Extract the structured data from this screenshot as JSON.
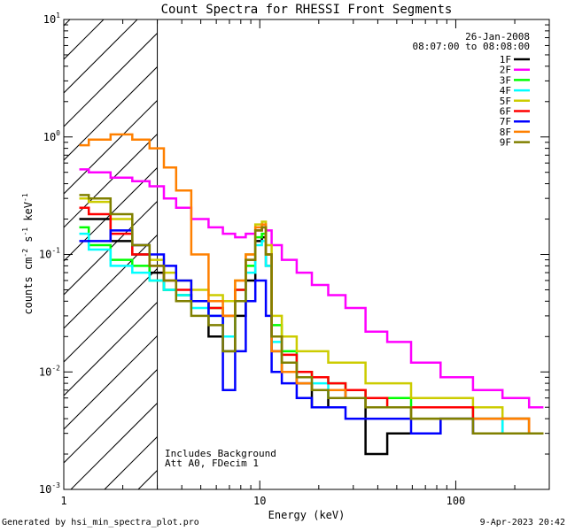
{
  "chart_data": {
    "type": "line",
    "title": "Count Spectra for RHESSI Front Segments",
    "xlabel": "Energy (keV)",
    "ylabel_parts": [
      "counts cm",
      "-2",
      " s",
      "-1",
      " keV",
      "-1"
    ],
    "xscale": "log",
    "yscale": "log",
    "xlim": [
      1,
      300
    ],
    "ylim": [
      0.001,
      10
    ],
    "x_ticks": [
      {
        "v": 1,
        "label": "1"
      },
      {
        "v": 10,
        "label": "10"
      },
      {
        "v": 100,
        "label": "100"
      }
    ],
    "y_ticks": [
      {
        "v": 0.001,
        "base": "10",
        "exp": "-3"
      },
      {
        "v": 0.01,
        "base": "10",
        "exp": "-2"
      },
      {
        "v": 0.1,
        "base": "10",
        "exp": "-1"
      },
      {
        "v": 1,
        "base": "10",
        "exp": "0"
      },
      {
        "v": 10,
        "base": "10",
        "exp": "1"
      }
    ],
    "date": "26-Jan-2008",
    "time_range": "08:07:00 to 08:08:00",
    "shaded_region_keV": [
      1,
      3
    ],
    "annotations": [
      "Includes Background",
      "Att A0, FDecim 1"
    ],
    "energies_keV": [
      1.2,
      1.5,
      2.0,
      2.5,
      3.0,
      3.5,
      4.0,
      5.0,
      6.0,
      7.0,
      8.0,
      9.0,
      10.0,
      10.5,
      11.0,
      12.0,
      14.0,
      17.0,
      20.0,
      25.0,
      30.0,
      40.0,
      50.0,
      70.0,
      100.0,
      150.0,
      200.0,
      280.0
    ],
    "series": [
      {
        "name": "1F",
        "color": "#000000",
        "values": [
          0.2,
          0.2,
          0.13,
          0.1,
          0.07,
          0.05,
          0.045,
          0.04,
          0.02,
          0.015,
          0.03,
          0.06,
          0.13,
          0.14,
          0.08,
          0.015,
          0.01,
          0.008,
          0.005,
          0.007,
          0.006,
          0.002,
          0.003,
          0.003,
          0.004,
          0.003,
          0.004,
          0.003
        ]
      },
      {
        "name": "2F",
        "color": "#ff00ff",
        "values": [
          0.53,
          0.5,
          0.45,
          0.42,
          0.38,
          0.3,
          0.25,
          0.2,
          0.17,
          0.15,
          0.14,
          0.15,
          0.16,
          0.17,
          0.16,
          0.12,
          0.09,
          0.07,
          0.055,
          0.045,
          0.035,
          0.022,
          0.018,
          0.012,
          0.009,
          0.007,
          0.006,
          0.005
        ]
      },
      {
        "name": "3F",
        "color": "#00ff00",
        "values": [
          0.17,
          0.12,
          0.09,
          0.08,
          0.06,
          0.05,
          0.045,
          0.04,
          0.035,
          0.03,
          0.05,
          0.08,
          0.14,
          0.15,
          0.1,
          0.025,
          0.015,
          0.01,
          0.009,
          0.008,
          0.007,
          0.006,
          0.006,
          0.005,
          0.005,
          0.004,
          0.004,
          0.003
        ]
      },
      {
        "name": "4F",
        "color": "#00ffff",
        "values": [
          0.15,
          0.11,
          0.08,
          0.07,
          0.06,
          0.05,
          0.045,
          0.035,
          0.03,
          0.02,
          0.04,
          0.07,
          0.12,
          0.13,
          0.08,
          0.018,
          0.012,
          0.009,
          0.008,
          0.006,
          0.006,
          0.005,
          0.005,
          0.004,
          0.004,
          0.004,
          0.003,
          0.003
        ]
      },
      {
        "name": "5F",
        "color": "#cccc00",
        "values": [
          0.3,
          0.28,
          0.2,
          0.12,
          0.09,
          0.07,
          0.06,
          0.05,
          0.045,
          0.04,
          0.06,
          0.1,
          0.18,
          0.19,
          0.12,
          0.03,
          0.02,
          0.015,
          0.015,
          0.012,
          0.012,
          0.008,
          0.008,
          0.006,
          0.006,
          0.005,
          0.004,
          0.003
        ]
      },
      {
        "name": "6F",
        "color": "#ff0000",
        "values": [
          0.25,
          0.22,
          0.15,
          0.1,
          0.08,
          0.06,
          0.05,
          0.04,
          0.035,
          0.03,
          0.05,
          0.09,
          0.16,
          0.17,
          0.1,
          0.02,
          0.014,
          0.01,
          0.009,
          0.008,
          0.007,
          0.006,
          0.005,
          0.005,
          0.005,
          0.004,
          0.004,
          0.003
        ]
      },
      {
        "name": "7F",
        "color": "#0000ff",
        "values": [
          0.13,
          0.13,
          0.16,
          0.12,
          0.1,
          0.08,
          0.06,
          0.04,
          0.03,
          0.007,
          0.015,
          0.04,
          0.06,
          0.06,
          0.03,
          0.01,
          0.008,
          0.006,
          0.005,
          0.005,
          0.004,
          0.004,
          0.004,
          0.003,
          0.004,
          0.003,
          0.003,
          0.003
        ]
      },
      {
        "name": "8F",
        "color": "#ff8000",
        "values": [
          0.85,
          0.95,
          1.05,
          0.95,
          0.8,
          0.55,
          0.35,
          0.1,
          0.04,
          0.03,
          0.06,
          0.1,
          0.17,
          0.18,
          0.1,
          0.015,
          0.01,
          0.008,
          0.007,
          0.007,
          0.006,
          0.005,
          0.005,
          0.004,
          0.004,
          0.004,
          0.004,
          0.003
        ]
      },
      {
        "name": "9F",
        "color": "#808000",
        "values": [
          0.32,
          0.3,
          0.22,
          0.12,
          0.08,
          0.06,
          0.04,
          0.03,
          0.025,
          0.015,
          0.04,
          0.09,
          0.16,
          0.17,
          0.1,
          0.02,
          0.012,
          0.009,
          0.007,
          0.006,
          0.006,
          0.005,
          0.005,
          0.004,
          0.004,
          0.003,
          0.003,
          0.003
        ]
      }
    ]
  },
  "footer": {
    "generated_by": "Generated by hsi_min_spectra_plot.pro",
    "timestamp": "9-Apr-2023 20:42"
  }
}
